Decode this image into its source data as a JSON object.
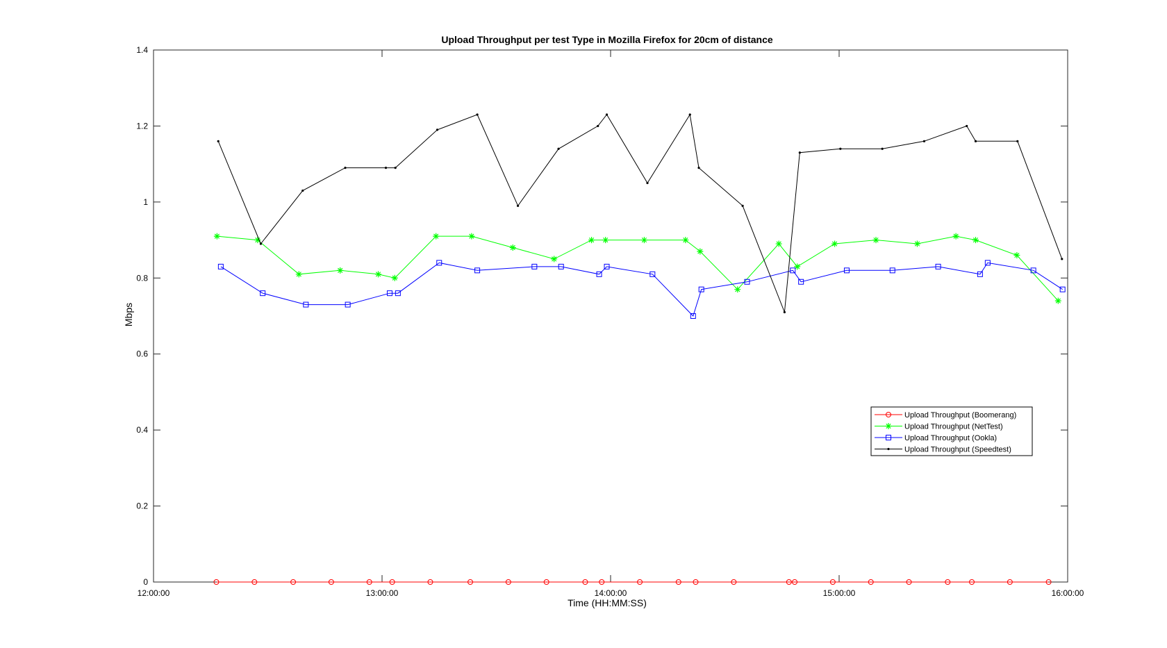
{
  "chart_data": {
    "type": "line",
    "title": "Upload Throughput per test Type in Mozilla Firefox for 20cm of distance",
    "xlabel": "Time (HH:MM:SS)",
    "ylabel": "Mbps",
    "xlim": [
      "12:00:00",
      "16:00:00"
    ],
    "ylim": [
      0,
      1.4
    ],
    "xticks": [
      "12:00:00",
      "13:00:00",
      "14:00:00",
      "15:00:00",
      "16:00:00"
    ],
    "yticks": [
      "0",
      "0.2",
      "0.4",
      "0.6",
      "0.8",
      "1",
      "1.2",
      "1.4"
    ],
    "legend_position": "right",
    "series": [
      {
        "name": "Upload Throughput (Boomerang)",
        "color": "#ff0000",
        "marker": "circle",
        "x": [
          "12:16:30",
          "12:26:30",
          "12:36:40",
          "12:46:40",
          "12:56:40",
          "13:02:40",
          "13:12:40",
          "13:23:10",
          "13:33:10",
          "13:43:10",
          "13:53:20",
          "13:57:40",
          "14:07:40",
          "14:17:50",
          "14:22:20",
          "14:32:20",
          "14:46:50",
          "14:48:20",
          "14:58:20",
          "15:08:20",
          "15:18:20",
          "15:28:30",
          "15:34:50",
          "15:44:50",
          "15:55:00"
        ],
        "y": [
          0,
          0,
          0,
          0,
          0,
          0,
          0,
          0,
          0,
          0,
          0,
          0,
          0,
          0,
          0,
          0,
          0,
          0,
          0,
          0,
          0,
          0,
          0,
          0,
          0
        ]
      },
      {
        "name": "Upload Throughput (NetTest)",
        "color": "#00ff00",
        "marker": "star",
        "x": [
          "12:16:40",
          "12:27:20",
          "12:38:10",
          "12:49:00",
          "12:59:00",
          "13:03:20",
          "13:14:10",
          "13:23:30",
          "13:34:20",
          "13:45:10",
          "13:55:00",
          "13:58:40",
          "14:08:50",
          "14:19:40",
          "14:23:30",
          "14:33:20",
          "14:44:10",
          "14:49:00",
          "14:58:50",
          "15:09:40",
          "15:20:30",
          "15:30:40",
          "15:35:50",
          "15:46:40",
          "15:57:30"
        ],
        "y": [
          0.91,
          0.9,
          0.81,
          0.82,
          0.81,
          0.8,
          0.91,
          0.91,
          0.88,
          0.85,
          0.9,
          0.9,
          0.9,
          0.9,
          0.87,
          0.77,
          0.89,
          0.83,
          0.89,
          0.9,
          0.89,
          0.91,
          0.9,
          0.86,
          0.74
        ]
      },
      {
        "name": "Upload Throughput (Ookla)",
        "color": "#0000ff",
        "marker": "square",
        "x": [
          "12:17:40",
          "12:28:40",
          "12:40:00",
          "12:51:00",
          "13:02:00",
          "13:04:10",
          "13:15:00",
          "13:25:00",
          "13:40:00",
          "13:47:00",
          "13:57:00",
          "13:59:00",
          "14:11:00",
          "14:21:40",
          "14:23:50",
          "14:35:50",
          "14:47:50",
          "14:50:00",
          "15:02:00",
          "15:14:00",
          "15:26:00",
          "15:37:00",
          "15:39:00",
          "15:51:00",
          "15:58:40"
        ],
        "y": [
          0.83,
          0.76,
          0.73,
          0.73,
          0.76,
          0.76,
          0.84,
          0.82,
          0.83,
          0.83,
          0.81,
          0.83,
          0.81,
          0.7,
          0.77,
          0.79,
          0.82,
          0.79,
          0.82,
          0.82,
          0.83,
          0.81,
          0.84,
          0.82,
          0.77
        ]
      },
      {
        "name": "Upload Throughput (Speedtest)",
        "color": "#000000",
        "marker": "dot",
        "x": [
          "12:17:00",
          "12:28:10",
          "12:39:10",
          "12:50:20",
          "13:01:00",
          "13:03:30",
          "13:14:30",
          "13:25:00",
          "13:35:40",
          "13:46:20",
          "13:56:40",
          "13:59:00",
          "14:09:40",
          "14:20:50",
          "14:23:10",
          "14:34:40",
          "14:45:40",
          "14:49:40",
          "15:00:20",
          "15:11:20",
          "15:22:20",
          "15:33:30",
          "15:35:50",
          "15:46:50",
          "15:58:30"
        ],
        "y": [
          1.16,
          0.89,
          1.03,
          1.09,
          1.09,
          1.09,
          1.19,
          1.23,
          0.99,
          1.14,
          1.2,
          1.23,
          1.05,
          1.23,
          1.09,
          0.99,
          0.71,
          1.13,
          1.14,
          1.14,
          1.16,
          1.2,
          1.16,
          1.16,
          0.85
        ]
      }
    ]
  }
}
